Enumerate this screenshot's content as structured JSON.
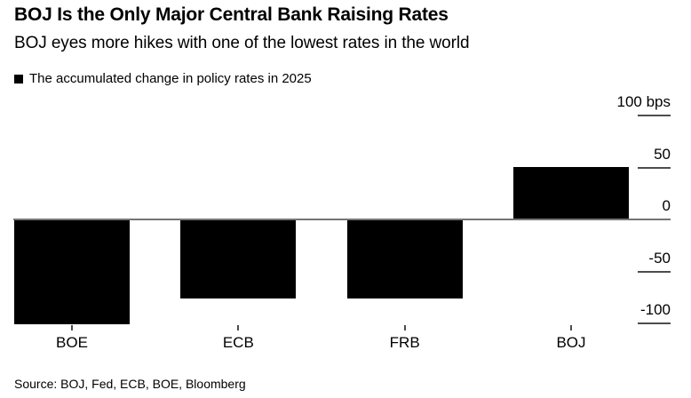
{
  "header": {
    "title": "BOJ Is the Only Major Central Bank Raising Rates",
    "subtitle": "BOJ eyes more hikes with one of the lowest rates in the world",
    "legend_label": "The accumulated change in policy rates in 2025"
  },
  "footer": {
    "source": "Source: BOJ, Fed, ECB, BOE, Bloomberg"
  },
  "colors": {
    "bar": "#000000",
    "text": "#000000",
    "zero_line": "#757575",
    "tick_line": "#4d4d4d",
    "background": "#ffffff"
  },
  "chart_data": {
    "type": "bar",
    "title": "BOJ Is the Only Major Central Bank Raising Rates",
    "subtitle": "BOJ eyes more hikes with one of the lowest rates in the world",
    "legend": "The accumulated change in policy rates in 2025",
    "categories": [
      "BOE",
      "ECB",
      "FRB",
      "BOJ"
    ],
    "values": [
      -100,
      -75,
      -75,
      50
    ],
    "unit": "bps",
    "ylabel": "",
    "xlabel": "",
    "ylim": [
      -100,
      100
    ],
    "yticks": [
      100,
      50,
      0,
      -50,
      -100
    ],
    "ytick_labels": [
      "100 bps",
      "50",
      "0",
      "-50",
      "-100"
    ],
    "grid": false,
    "axis_side": "right",
    "bar_color": "#000000",
    "source": "Source: BOJ, Fed, ECB, BOE, Bloomberg"
  }
}
